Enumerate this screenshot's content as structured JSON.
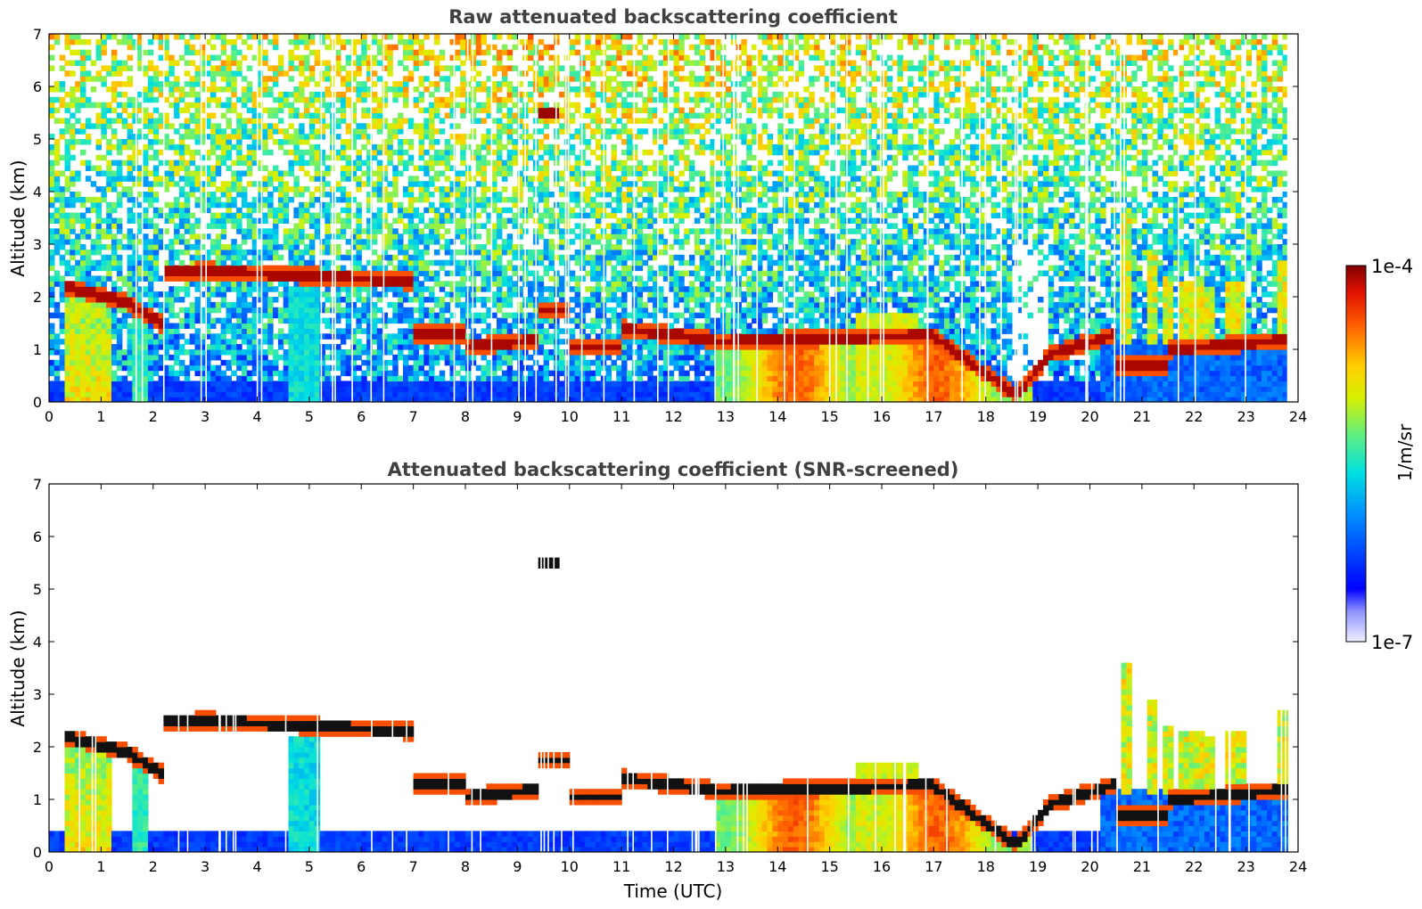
{
  "chart_data": [
    {
      "type": "heatmap",
      "title": "Raw attenuated backscattering coefficient",
      "xlabel": "",
      "ylabel": "Altitude (km)",
      "xlim": [
        0,
        24
      ],
      "ylim": [
        0,
        7
      ],
      "xticks": [
        "0",
        "1",
        "2",
        "3",
        "4",
        "5",
        "6",
        "7",
        "8",
        "9",
        "10",
        "11",
        "12",
        "13",
        "14",
        "15",
        "16",
        "17",
        "18",
        "19",
        "20",
        "21",
        "22",
        "23",
        "24"
      ],
      "yticks": [
        "0",
        "1",
        "2",
        "3",
        "4",
        "5",
        "6",
        "7"
      ],
      "screened": false,
      "features": [
        {
          "name": "aerosol-layer-low",
          "x": [
            0,
            24
          ],
          "y": [
            0,
            0.4
          ],
          "value": "low"
        },
        {
          "name": "cloud-layer-morning",
          "x": [
            0.3,
            7
          ],
          "y": [
            1.7,
            2.6
          ],
          "value": "high"
        },
        {
          "name": "elevated-cloud",
          "x": [
            9.4,
            9.8
          ],
          "y": [
            5.4,
            5.55
          ],
          "value": "high"
        },
        {
          "name": "boundary-layer-afternoon",
          "x": [
            12.8,
            19
          ],
          "y": [
            0,
            1.7
          ],
          "value": "medium-high"
        },
        {
          "name": "clouds-evening",
          "x": [
            20.6,
            23.8
          ],
          "y": [
            1.2,
            3.7
          ],
          "value": "medium"
        }
      ]
    },
    {
      "type": "heatmap",
      "title": "Attenuated backscattering coefficient (SNR-screened)",
      "xlabel": "Time (UTC)",
      "ylabel": "Altitude (km)",
      "xlim": [
        0,
        24
      ],
      "ylim": [
        0,
        7
      ],
      "xticks": [
        "0",
        "1",
        "2",
        "3",
        "4",
        "5",
        "6",
        "7",
        "8",
        "9",
        "10",
        "11",
        "12",
        "13",
        "14",
        "15",
        "16",
        "17",
        "18",
        "19",
        "20",
        "21",
        "22",
        "23",
        "24"
      ],
      "yticks": [
        "0",
        "1",
        "2",
        "3",
        "4",
        "5",
        "6",
        "7"
      ],
      "screened": true
    }
  ],
  "colorbar": {
    "max_label": "1e-4",
    "min_label": "1e-7",
    "unit_label": "1/m/sr"
  }
}
